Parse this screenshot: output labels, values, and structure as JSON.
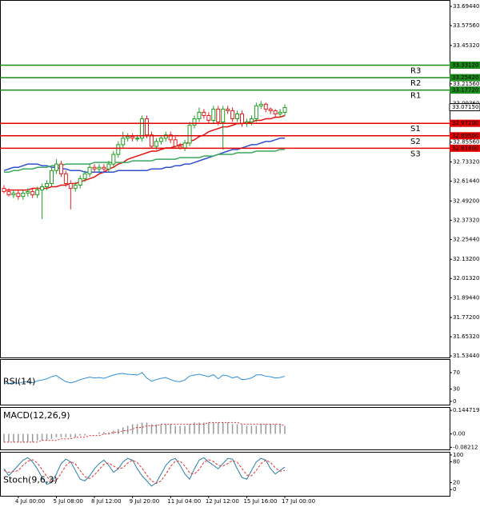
{
  "chart_data": [
    {
      "type": "candlestick",
      "categories": [
        null,
        null,
        null,
        "4 Jul 00:00",
        null,
        null,
        null,
        null,
        null,
        null,
        null,
        "5 Jul 08:00",
        null,
        null,
        null,
        null,
        null,
        null,
        null,
        "8 Jul 12:00",
        null,
        null,
        null,
        null,
        null,
        null,
        null,
        "9 Jul 20:00",
        null,
        null,
        null,
        null,
        null,
        null,
        null,
        "11 Jul 04:00",
        null,
        null,
        null,
        null,
        null,
        null,
        null,
        "12 Jul 12:00",
        null,
        null,
        null,
        null,
        null,
        null,
        null,
        "15 Jul 16:00",
        null,
        null,
        null,
        null,
        null,
        null,
        null,
        "17 Jul 00:00"
      ],
      "open": [
        32.57,
        32.55,
        32.53,
        32.54,
        32.52,
        32.54,
        32.55,
        32.53,
        32.56,
        32.58,
        32.6,
        32.68,
        32.72,
        32.66,
        32.6,
        32.57,
        32.59,
        32.63,
        32.66,
        32.7,
        32.69,
        32.7,
        32.69,
        32.72,
        32.78,
        32.84,
        32.88,
        32.89,
        32.88,
        32.88,
        33.0,
        32.9,
        32.83,
        32.86,
        32.88,
        32.9,
        32.87,
        32.83,
        32.82,
        32.85,
        32.96,
        33.0,
        33.04,
        33.02,
        32.99,
        33.06,
        32.98,
        33.06,
        33.05,
        33.0,
        33.03,
        32.97,
        32.98,
        33.0,
        33.08,
        33.09,
        33.06,
        33.05,
        33.03,
        33.04
      ],
      "high": [
        32.59,
        32.57,
        32.56,
        32.56,
        32.56,
        32.57,
        32.57,
        32.58,
        32.6,
        32.62,
        32.7,
        32.75,
        32.74,
        32.68,
        32.62,
        32.61,
        32.65,
        32.68,
        32.72,
        32.72,
        32.72,
        32.72,
        32.74,
        32.8,
        32.86,
        32.92,
        32.91,
        32.91,
        32.9,
        33.02,
        33.02,
        32.92,
        32.88,
        32.89,
        32.92,
        32.92,
        32.89,
        32.85,
        32.87,
        32.98,
        33.02,
        33.07,
        33.06,
        33.04,
        33.08,
        33.08,
        33.08,
        33.08,
        33.07,
        33.05,
        33.05,
        33.0,
        33.02,
        33.1,
        33.11,
        33.1,
        33.07,
        33.06,
        33.06,
        33.09
      ],
      "low": [
        32.54,
        32.52,
        32.51,
        32.5,
        32.5,
        32.52,
        32.51,
        32.51,
        32.38,
        32.56,
        32.58,
        32.66,
        32.64,
        32.58,
        32.44,
        32.55,
        32.57,
        32.61,
        32.64,
        32.67,
        32.67,
        32.67,
        32.67,
        32.7,
        32.76,
        32.82,
        32.86,
        32.86,
        32.86,
        32.86,
        32.88,
        32.82,
        32.81,
        32.84,
        32.86,
        32.85,
        32.82,
        32.81,
        32.8,
        32.83,
        32.94,
        32.98,
        33.0,
        32.97,
        32.97,
        32.96,
        32.81,
        33.03,
        32.98,
        32.98,
        32.95,
        32.95,
        32.96,
        32.98,
        33.06,
        33.04,
        33.03,
        33.01,
        33.01,
        33.02
      ],
      "close": [
        32.55,
        32.53,
        32.54,
        32.52,
        32.54,
        32.55,
        32.53,
        32.56,
        32.58,
        32.6,
        32.68,
        32.72,
        32.66,
        32.6,
        32.57,
        32.59,
        32.63,
        32.66,
        32.7,
        32.69,
        32.7,
        32.69,
        32.72,
        32.78,
        32.84,
        32.88,
        32.89,
        32.88,
        32.88,
        33.0,
        32.9,
        32.83,
        32.86,
        32.88,
        32.9,
        32.87,
        32.83,
        32.82,
        32.85,
        32.96,
        33.0,
        33.04,
        33.02,
        32.99,
        33.06,
        32.98,
        33.06,
        33.05,
        33.0,
        33.03,
        32.97,
        32.98,
        33.0,
        33.08,
        33.09,
        33.06,
        33.05,
        33.03,
        33.04,
        33.07
      ],
      "up_color": "#1e9e1e",
      "down_color": "#e02020",
      "series": [
        {
          "color": "#e81010",
          "values": [
            32.56,
            32.56,
            32.56,
            32.56,
            32.56,
            32.56,
            32.57,
            32.57,
            32.57,
            32.57,
            32.58,
            32.58,
            32.59,
            32.59,
            32.6,
            32.6,
            32.61,
            32.62,
            32.63,
            32.64,
            32.66,
            32.67,
            32.69,
            32.7,
            32.72,
            32.73,
            32.75,
            32.76,
            32.77,
            32.78,
            32.79,
            32.8,
            32.8,
            32.81,
            32.82,
            32.82,
            32.83,
            32.84,
            32.84,
            32.86,
            32.87,
            32.89,
            32.9,
            32.92,
            32.93,
            32.94,
            32.95,
            32.95,
            32.96,
            32.97,
            32.97,
            32.98,
            32.98,
            32.99,
            32.99,
            33.0,
            33.0,
            33.01,
            33.01,
            33.02
          ]
        },
        {
          "color": "#3050d0",
          "values": [
            32.68,
            32.69,
            32.7,
            32.7,
            32.71,
            32.72,
            32.72,
            32.72,
            32.71,
            32.71,
            32.7,
            32.7,
            32.69,
            32.69,
            32.68,
            32.68,
            32.68,
            32.67,
            32.67,
            32.67,
            32.67,
            32.67,
            32.67,
            32.67,
            32.68,
            32.68,
            32.68,
            32.68,
            32.68,
            32.68,
            32.68,
            32.69,
            32.69,
            32.69,
            32.7,
            32.7,
            32.71,
            32.71,
            32.72,
            32.72,
            32.73,
            32.74,
            32.75,
            32.76,
            32.77,
            32.78,
            32.79,
            32.8,
            32.81,
            32.81,
            32.82,
            32.83,
            32.84,
            32.84,
            32.85,
            32.86,
            32.86,
            32.87,
            32.88,
            32.88
          ]
        },
        {
          "color": "#3aa860",
          "values": [
            32.67,
            32.67,
            32.68,
            32.68,
            32.69,
            32.69,
            32.69,
            32.7,
            32.7,
            32.7,
            32.71,
            32.71,
            32.71,
            32.72,
            32.72,
            32.72,
            32.72,
            32.72,
            32.72,
            32.73,
            32.73,
            32.73,
            32.73,
            32.73,
            32.73,
            32.73,
            32.73,
            32.74,
            32.74,
            32.74,
            32.74,
            32.74,
            32.75,
            32.75,
            32.75,
            32.75,
            32.75,
            32.76,
            32.76,
            32.76,
            32.76,
            32.76,
            32.77,
            32.77,
            32.77,
            32.78,
            32.78,
            32.78,
            32.78,
            32.79,
            32.79,
            32.79,
            32.79,
            32.8,
            32.8,
            32.8,
            32.8,
            32.8,
            32.81,
            32.81
          ]
        }
      ],
      "levels": [
        {
          "name": "R3",
          "value": 33.3312,
          "label": "33.33120",
          "color": "#1a8a1a"
        },
        {
          "name": "R2",
          "value": 33.2542,
          "label": "33.25420",
          "color": "#1a8a1a"
        },
        {
          "name": "R1",
          "value": 33.1772,
          "label": "33.17720",
          "color": "#1a8a1a"
        },
        {
          "name": "S1",
          "value": 32.972,
          "label": "32.97200",
          "color": "#e00000"
        },
        {
          "name": "S2",
          "value": 32.895,
          "label": "32.89500",
          "color": "#e00000"
        },
        {
          "name": "S3",
          "value": 32.818,
          "label": "32.81800",
          "color": "#e00000"
        }
      ],
      "current_price": {
        "value": 33.0715,
        "label": "33.07150"
      },
      "ylim": [
        31.525,
        33.734
      ],
      "yticks": [
        {
          "value": 33.6944,
          "label": "33.69440"
        },
        {
          "value": 33.5756,
          "label": "33.57560"
        },
        {
          "value": 33.4532,
          "label": "33.45320"
        },
        {
          "value": 33.2156,
          "label": "33.21560"
        },
        {
          "value": 33.0936,
          "label": "33.09360"
        },
        {
          "value": 32.8556,
          "label": "32.85560"
        },
        {
          "value": 32.7332,
          "label": "32.73320"
        },
        {
          "value": 32.6144,
          "label": "32.61440"
        },
        {
          "value": 32.492,
          "label": "32.49200"
        },
        {
          "value": 32.3732,
          "label": "32.37320"
        },
        {
          "value": 32.2544,
          "label": "32.25440"
        },
        {
          "value": 32.132,
          "label": "32.13200"
        },
        {
          "value": 32.0132,
          "label": "32.01320"
        },
        {
          "value": 31.8944,
          "label": "31.89440"
        },
        {
          "value": 31.772,
          "label": "31.77200"
        },
        {
          "value": 31.6532,
          "label": "31.65320"
        },
        {
          "value": 31.5344,
          "label": "31.53440"
        }
      ]
    },
    {
      "type": "line",
      "title": "RSI(14)",
      "series": [
        {
          "color": "#2f8fd8",
          "values": [
            45,
            43,
            46,
            44,
            47,
            48,
            45,
            50,
            52,
            55,
            60,
            63,
            55,
            48,
            45,
            48,
            53,
            56,
            59,
            57,
            58,
            56,
            60,
            64,
            67,
            68,
            66,
            65,
            64,
            70,
            57,
            49,
            53,
            56,
            58,
            53,
            49,
            48,
            52,
            62,
            64,
            66,
            63,
            60,
            65,
            55,
            64,
            62,
            57,
            60,
            53,
            54,
            57,
            64,
            65,
            61,
            60,
            57,
            58,
            61
          ]
        }
      ],
      "ylim": [
        -8,
        103
      ],
      "yticks": [
        70,
        30,
        0
      ]
    },
    {
      "type": "macd",
      "title": "MACD(12,26,9)",
      "color": "#999999",
      "signal_color": "#e03030",
      "values": [
        -0.05,
        -0.05,
        -0.05,
        -0.05,
        -0.05,
        -0.05,
        -0.05,
        -0.04,
        -0.04,
        -0.04,
        -0.03,
        -0.02,
        -0.02,
        -0.02,
        -0.02,
        -0.02,
        -0.01,
        -0.01,
        0.0,
        0.0,
        0.01,
        0.01,
        0.01,
        0.02,
        0.03,
        0.04,
        0.05,
        0.06,
        0.06,
        0.07,
        0.07,
        0.06,
        0.06,
        0.06,
        0.06,
        0.06,
        0.05,
        0.05,
        0.05,
        0.06,
        0.07,
        0.07,
        0.07,
        0.07,
        0.07,
        0.07,
        0.07,
        0.07,
        0.06,
        0.06,
        0.06,
        0.05,
        0.05,
        0.05,
        0.06,
        0.06,
        0.06,
        0.06,
        0.06,
        0.05
      ],
      "signal": [
        -0.05,
        -0.05,
        -0.05,
        -0.05,
        -0.05,
        -0.05,
        -0.05,
        -0.05,
        -0.04,
        -0.04,
        -0.04,
        -0.04,
        -0.03,
        -0.03,
        -0.03,
        -0.02,
        -0.02,
        -0.02,
        -0.01,
        -0.01,
        -0.01,
        0.0,
        0.0,
        0.01,
        0.01,
        0.02,
        0.02,
        0.03,
        0.04,
        0.04,
        0.05,
        0.05,
        0.05,
        0.06,
        0.06,
        0.06,
        0.06,
        0.06,
        0.06,
        0.06,
        0.06,
        0.06,
        0.06,
        0.07,
        0.07,
        0.07,
        0.07,
        0.07,
        0.07,
        0.07,
        0.06,
        0.06,
        0.06,
        0.06,
        0.06,
        0.06,
        0.06,
        0.06,
        0.06,
        0.05
      ],
      "ylim": [
        -0.095,
        0.165
      ],
      "yticks": [
        0.144719,
        {
          "value": 0,
          "label": "0.00"
        },
        -0.08212
      ]
    },
    {
      "type": "line",
      "title": "Stoch(9,6,3)",
      "series": [
        {
          "color": "#2a7fa8",
          "values": [
            60,
            40,
            55,
            70,
            85,
            92,
            80,
            60,
            35,
            15,
            20,
            45,
            75,
            88,
            80,
            55,
            30,
            25,
            40,
            60,
            75,
            85,
            70,
            50,
            60,
            80,
            90,
            85,
            60,
            40,
            25,
            10,
            20,
            45,
            70,
            85,
            90,
            70,
            45,
            30,
            60,
            85,
            92,
            80,
            70,
            60,
            75,
            90,
            88,
            60,
            35,
            30,
            55,
            80,
            90,
            85,
            60,
            45,
            55,
            65
          ]
        },
        {
          "color": "#e03030",
          "dashed": true,
          "values": [
            55,
            50,
            52,
            55,
            70,
            82,
            86,
            77,
            58,
            37,
            23,
            27,
            47,
            69,
            81,
            74,
            55,
            37,
            32,
            42,
            58,
            73,
            77,
            68,
            60,
            63,
            77,
            85,
            78,
            62,
            42,
            25,
            18,
            25,
            45,
            67,
            82,
            82,
            68,
            48,
            45,
            58,
            79,
            86,
            81,
            70,
            68,
            75,
            84,
            79,
            61,
            42,
            40,
            55,
            75,
            85,
            78,
            63,
            53,
            55
          ]
        }
      ],
      "ylim": [
        -18,
        109
      ],
      "yticks": [
        100,
        80,
        20,
        0
      ]
    }
  ]
}
